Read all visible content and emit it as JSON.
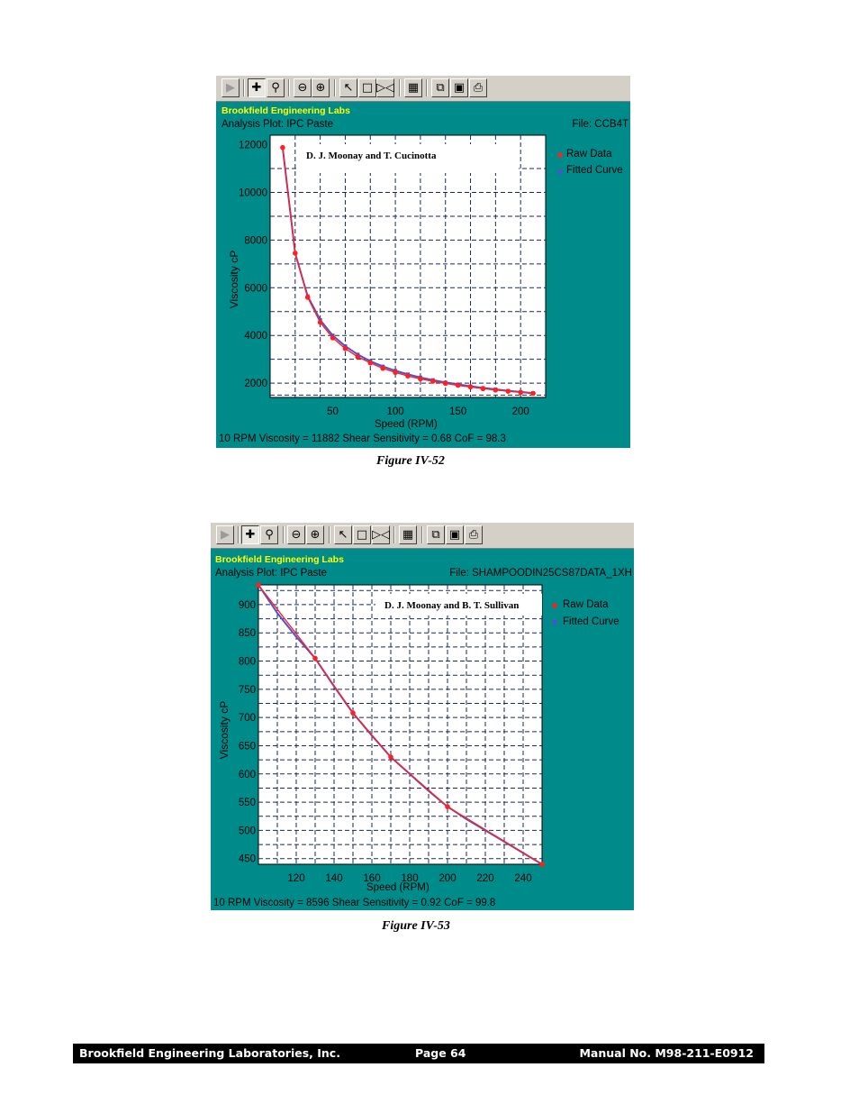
{
  "figures": [
    {
      "app_title": "Brookfield Engineering Labs",
      "analysis_plot": "Analysis Plot: IPC Paste",
      "file": "File: CCB4T",
      "plot_label": "D. J. Moonay and T. Cucinotta",
      "legend": {
        "raw": "Raw Data",
        "fitted": "Fitted Curve"
      },
      "xlabel": "Speed (RPM)",
      "ylabel": "Viscosity cP",
      "status": "10 RPM Viscosity = 11882   Shear Sensitivity = 0.68   CoF = 98.3",
      "caption": "Figure IV-52"
    },
    {
      "app_title": "Brookfield Engineering Labs",
      "analysis_plot": "Analysis Plot: IPC Paste",
      "file": "File: SHAMPOODIN25CS87DATA_1XH",
      "plot_label": "D. J. Moonay and B. T. Sullivan",
      "legend": {
        "raw": "Raw Data",
        "fitted": "Fitted Curve"
      },
      "xlabel": "Speed (RPM)",
      "ylabel": "Viscosity cP",
      "status": "10 RPM Viscosity = 8596   Shear Sensitivity = 0.92   CoF = 99.8",
      "caption": "Figure IV-53"
    }
  ],
  "toolbar_icons": [
    "play-icon",
    "pan-icon",
    "zoom-box-icon",
    "zoom-out-icon",
    "zoom-in-icon",
    "pointer-icon",
    "select-box-icon",
    "fit-icon",
    "properties-icon",
    "copy-icon",
    "save-icon",
    "print-icon"
  ],
  "colors": {
    "panel": "#008b8b",
    "raw": "#ff2020",
    "fitted": "#5050d0",
    "title": "#ffff00"
  },
  "chart_data": [
    {
      "type": "scatter",
      "title": "D. J. Moonay and T. Cucinotta",
      "xlabel": "Speed (RPM)",
      "ylabel": "Viscosity cP",
      "xlim": [
        0,
        220
      ],
      "ylim": [
        1400,
        12400
      ],
      "x_ticks": [
        50,
        100,
        150,
        200
      ],
      "y_ticks": [
        2000,
        4000,
        6000,
        8000,
        10000,
        12000
      ],
      "grid": true,
      "legend": "right",
      "series": [
        {
          "name": "Raw Data",
          "x": [
            10,
            20,
            30,
            40,
            50,
            60,
            70,
            80,
            90,
            100,
            110,
            120,
            130,
            140,
            150,
            160,
            170,
            180,
            190,
            200,
            210
          ],
          "y": [
            11882,
            7450,
            5600,
            4550,
            3900,
            3450,
            3100,
            2850,
            2620,
            2450,
            2300,
            2180,
            2080,
            1990,
            1910,
            1840,
            1770,
            1710,
            1660,
            1610,
            1570
          ]
        },
        {
          "name": "Fitted Curve",
          "x": [
            10,
            20,
            30,
            40,
            50,
            60,
            70,
            80,
            90,
            100,
            110,
            120,
            130,
            140,
            150,
            160,
            170,
            180,
            190,
            200,
            210
          ],
          "y": [
            11882,
            7450,
            5650,
            4650,
            4000,
            3550,
            3200,
            2920,
            2700,
            2520,
            2370,
            2240,
            2130,
            2030,
            1950,
            1870,
            1800,
            1740,
            1680,
            1630,
            1580
          ]
        }
      ]
    },
    {
      "type": "scatter",
      "title": "D. J. Moonay and B. T. Sullivan",
      "xlabel": "Speed (RPM)",
      "ylabel": "Viscosity cP",
      "xlim": [
        100,
        250
      ],
      "ylim": [
        440,
        935
      ],
      "x_ticks": [
        120,
        140,
        160,
        180,
        200,
        220,
        240
      ],
      "y_ticks": [
        450,
        500,
        550,
        600,
        650,
        700,
        750,
        800,
        850,
        900
      ],
      "grid": true,
      "legend": "right",
      "series": [
        {
          "name": "Raw Data",
          "x": [
            100,
            130,
            150,
            170,
            200,
            250
          ],
          "y": [
            935,
            805,
            708,
            630,
            542,
            440
          ]
        },
        {
          "name": "Fitted Curve",
          "x": [
            100,
            110,
            120,
            130,
            140,
            150,
            160,
            170,
            180,
            190,
            200,
            210,
            220,
            230,
            240,
            250
          ],
          "y": [
            935,
            885,
            843,
            805,
            755,
            708,
            668,
            630,
            600,
            570,
            542,
            520,
            500,
            480,
            460,
            440
          ]
        }
      ]
    }
  ],
  "footer": {
    "company": "Brookfield Engineering Laboratories, Inc.",
    "page": "Page  64",
    "manual": "Manual No. M98-211-E0912"
  }
}
